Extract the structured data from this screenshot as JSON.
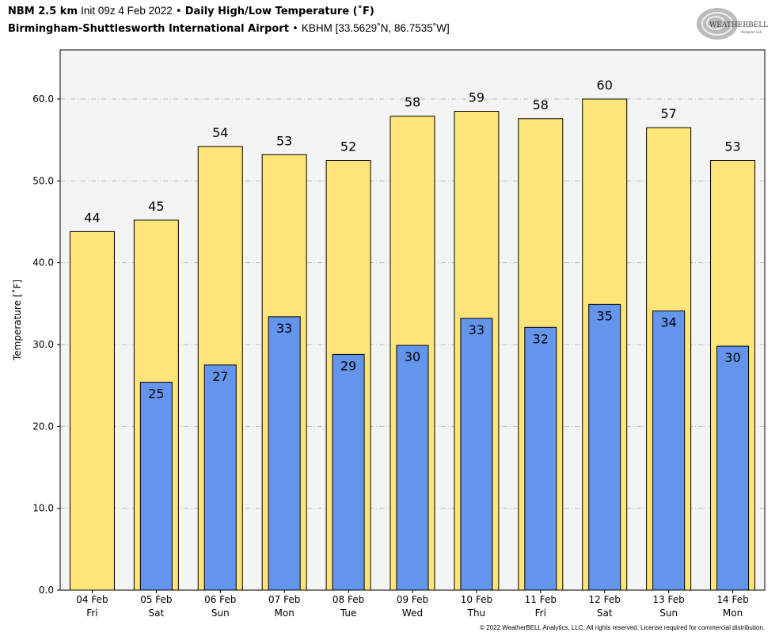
{
  "header": {
    "model": "NBM 2.5 km",
    "init": "Init 09z 4 Feb 2022",
    "separator": "•",
    "product": "Daily High/Low Temperature (˚F)",
    "location": "Birmingham-Shuttlesworth International Airport",
    "station": "KBHM [33.5629˚N, 86.7535˚W]"
  },
  "logo": {
    "text": "WeatherBELL",
    "subtext": "Analytics LLC"
  },
  "footer": "© 2022 WeatherBELL Analytics, LLC. All rights reserved. License required for commercial distribution.",
  "chart_data": {
    "type": "bar",
    "title": "Daily High/Low Temperature (˚F)",
    "ylabel": "Temperature [˚F]",
    "xlabel": "",
    "ylim": [
      0,
      66
    ],
    "yticks": [
      "0.0",
      "10.0",
      "20.0",
      "30.0",
      "40.0",
      "50.0",
      "60.0"
    ],
    "grid": true,
    "categories": [
      [
        "04 Feb",
        "Fri"
      ],
      [
        "05 Feb",
        "Sat"
      ],
      [
        "06 Feb",
        "Sun"
      ],
      [
        "07 Feb",
        "Mon"
      ],
      [
        "08 Feb",
        "Tue"
      ],
      [
        "09 Feb",
        "Wed"
      ],
      [
        "10 Feb",
        "Thu"
      ],
      [
        "11 Feb",
        "Fri"
      ],
      [
        "12 Feb",
        "Sat"
      ],
      [
        "13 Feb",
        "Sun"
      ],
      [
        "14 Feb",
        "Mon"
      ]
    ],
    "series": [
      {
        "name": "High",
        "color": "#FFE47A",
        "values": [
          43.8,
          45.2,
          54.2,
          53.2,
          52.5,
          57.9,
          58.5,
          57.6,
          60.0,
          56.5,
          52.5
        ],
        "labels": [
          "44",
          "45",
          "54",
          "53",
          "52",
          "58",
          "59",
          "58",
          "60",
          "57",
          "53"
        ]
      },
      {
        "name": "Low",
        "color": "#6495ED",
        "values": [
          null,
          25.4,
          27.5,
          33.4,
          28.8,
          29.9,
          33.2,
          32.1,
          34.9,
          34.1,
          29.8
        ],
        "labels": [
          "",
          "25",
          "27",
          "33",
          "29",
          "30",
          "33",
          "32",
          "35",
          "34",
          "30"
        ]
      }
    ],
    "plot_background": "#F4F4F4"
  }
}
